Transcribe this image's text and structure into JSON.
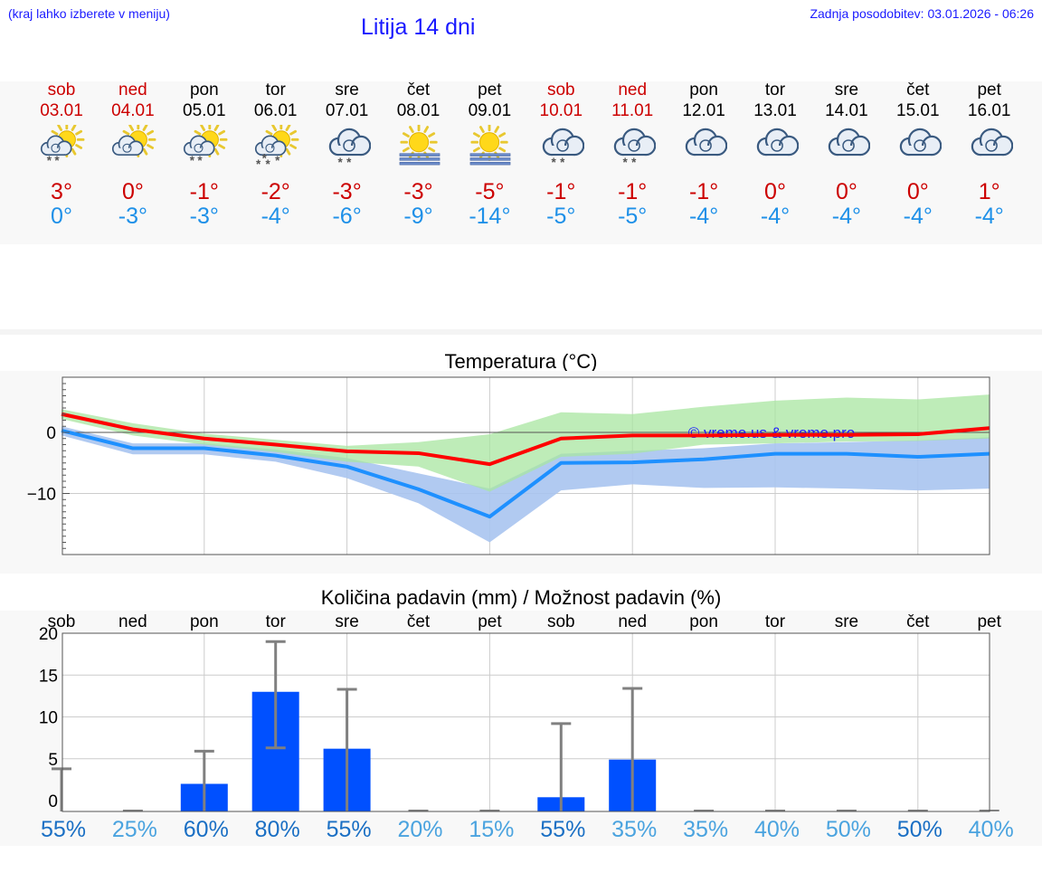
{
  "header": {
    "left_note": "(kraj lahko izberete v meniju)",
    "title": "Litija 14 dni",
    "updated": "Zadnja posodobitev: 03.01.2026 - 06:26"
  },
  "days": [
    {
      "name": "sob",
      "date": "03.01",
      "weekend": true,
      "icon": "sun-cloud-snow-icon",
      "tmax": "3°",
      "tmin": "0°"
    },
    {
      "name": "ned",
      "date": "04.01",
      "weekend": true,
      "icon": "sun-cloud-icon",
      "tmax": "0°",
      "tmin": "-3°"
    },
    {
      "name": "pon",
      "date": "05.01",
      "weekend": false,
      "icon": "sun-cloud-snow-icon",
      "tmax": "-1°",
      "tmin": "-3°"
    },
    {
      "name": "tor",
      "date": "06.01",
      "weekend": false,
      "icon": "sun-cloud-heavy-snow-icon",
      "tmax": "-2°",
      "tmin": "-4°"
    },
    {
      "name": "sre",
      "date": "07.01",
      "weekend": false,
      "icon": "cloud-snow-icon",
      "tmax": "-3°",
      "tmin": "-6°"
    },
    {
      "name": "čet",
      "date": "08.01",
      "weekend": false,
      "icon": "sun-fog-icon",
      "tmax": "-3°",
      "tmin": "-9°"
    },
    {
      "name": "pet",
      "date": "09.01",
      "weekend": false,
      "icon": "sun-fog-icon",
      "tmax": "-5°",
      "tmin": "-14°"
    },
    {
      "name": "sob",
      "date": "10.01",
      "weekend": true,
      "icon": "cloud-snow-icon",
      "tmax": "-1°",
      "tmin": "-5°"
    },
    {
      "name": "ned",
      "date": "11.01",
      "weekend": true,
      "icon": "cloud-snow-icon",
      "tmax": "-1°",
      "tmin": "-5°"
    },
    {
      "name": "pon",
      "date": "12.01",
      "weekend": false,
      "icon": "cloud-icon",
      "tmax": "-1°",
      "tmin": "-4°"
    },
    {
      "name": "tor",
      "date": "13.01",
      "weekend": false,
      "icon": "cloud-icon",
      "tmax": "0°",
      "tmin": "-4°"
    },
    {
      "name": "sre",
      "date": "14.01",
      "weekend": false,
      "icon": "cloud-icon",
      "tmax": "0°",
      "tmin": "-4°"
    },
    {
      "name": "čet",
      "date": "15.01",
      "weekend": false,
      "icon": "cloud-icon",
      "tmax": "0°",
      "tmin": "-4°"
    },
    {
      "name": "pet",
      "date": "16.01",
      "weekend": false,
      "icon": "cloud-icon",
      "tmax": "1°",
      "tmin": "-4°"
    }
  ],
  "colors": {
    "max_line": "#ff0000",
    "min_line": "#1e90ff",
    "max_band": "#a8e6a0",
    "min_band": "#a8c4f0",
    "bar": "#0050ff",
    "whisker": "#808080",
    "weekend": "#cc0000",
    "text": "#000000",
    "pct_dark": "#1a6fc4",
    "pct_light": "#4aa3df"
  },
  "chart_data": [
    {
      "type": "line",
      "title": "Temperatura (°C)",
      "watermark": "© vreme.us & vreme.pro",
      "ylim": [
        -20,
        9
      ],
      "yticks": [
        0,
        -10
      ],
      "ytick_labels": [
        "0",
        "−10"
      ],
      "x": [
        0,
        1,
        2,
        3,
        4,
        5,
        6,
        7,
        8,
        9,
        10,
        11,
        12,
        13
      ],
      "series": [
        {
          "name": "max",
          "values": [
            3,
            0.5,
            -1,
            -2,
            -3.1,
            -3.4,
            -5.2,
            -1,
            -0.5,
            -0.5,
            -0.4,
            -0.4,
            -0.3,
            0.7
          ]
        },
        {
          "name": "min",
          "values": [
            0.3,
            -2.6,
            -2.6,
            -3.8,
            -5.6,
            -9.3,
            -13.8,
            -5,
            -4.9,
            -4.4,
            -3.5,
            -3.5,
            -4,
            -3.5
          ]
        }
      ],
      "bands": [
        {
          "name": "max_range",
          "upper": [
            3.8,
            1.5,
            -0.2,
            -1.2,
            -2.2,
            -1.6,
            -0.3,
            3.3,
            3.0,
            4.2,
            5.2,
            5.7,
            5.4,
            6.2
          ],
          "lower": [
            2.2,
            -0.5,
            -2.0,
            -3.2,
            -4.8,
            -5.6,
            -9.7,
            -4.0,
            -3.5,
            -2.0,
            -1.8,
            -1.5,
            -1.4,
            -1.0
          ]
        },
        {
          "name": "min_range",
          "upper": [
            1.0,
            -1.8,
            -1.8,
            -2.8,
            -4.2,
            -6.7,
            -9.2,
            -3.5,
            -3.0,
            -2.6,
            -1.8,
            -1.6,
            -1.3,
            -0.8
          ]
        },
        {
          "name": "min_range_lower",
          "values": [
            -0.5,
            -3.6,
            -3.6,
            -4.8,
            -7.5,
            -11.6,
            -18.0,
            -9.5,
            -8.5,
            -9.1,
            -9.0,
            -9.2,
            -9.5,
            -9.2
          ]
        }
      ]
    },
    {
      "type": "bar",
      "title": "Količina padavin (mm) / Možnost padavin (%)",
      "categories": [
        "sob",
        "ned",
        "pon",
        "tor",
        "sre",
        "čet",
        "pet",
        "sob",
        "ned",
        "pon",
        "tor",
        "sre",
        "čet",
        "pet"
      ],
      "ylim": [
        0,
        20
      ],
      "yticks": [
        0,
        5,
        10,
        15,
        20
      ],
      "values": [
        0,
        0,
        2.0,
        13.0,
        6.2,
        0,
        0,
        0.4,
        4.9,
        0,
        0,
        0,
        0,
        0
      ],
      "error_high": [
        3.8,
        0,
        5.9,
        19.0,
        13.3,
        0,
        0,
        9.2,
        13.4,
        0,
        0,
        0,
        0,
        0
      ],
      "error_low": [
        0,
        0,
        0,
        6.3,
        0,
        0,
        0,
        0,
        0,
        0,
        0,
        0,
        0,
        0
      ],
      "probability": [
        "55%",
        "25%",
        "60%",
        "80%",
        "55%",
        "20%",
        "15%",
        "55%",
        "35%",
        "35%",
        "40%",
        "50%",
        "50%",
        "40%"
      ],
      "probability_strong": [
        true,
        false,
        true,
        true,
        true,
        false,
        false,
        true,
        false,
        false,
        false,
        false,
        true,
        false
      ]
    }
  ]
}
